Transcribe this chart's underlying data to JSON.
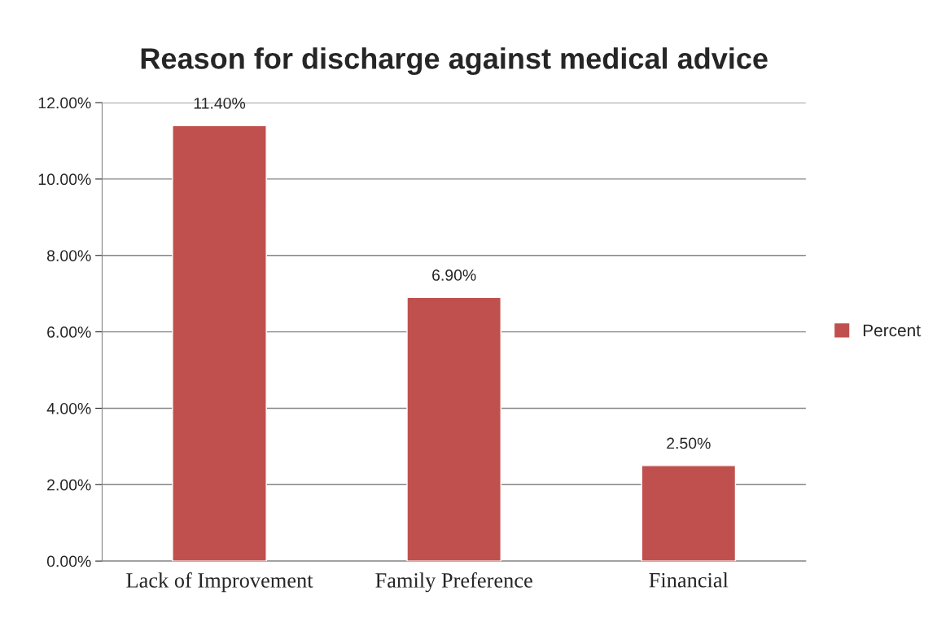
{
  "chart_data": {
    "type": "bar",
    "title": "Reason for discharge against medical advice",
    "categories": [
      "Lack of Improvement",
      "Family Preference",
      "Financial"
    ],
    "series": [
      {
        "name": "Percent",
        "color": "#c0504d",
        "values": [
          11.4,
          6.9,
          2.5
        ],
        "value_labels": [
          "11.40%",
          "6.90%",
          "2.50%"
        ]
      }
    ],
    "ylim": [
      0,
      12
    ],
    "yticks": [
      {
        "value": 0,
        "label": "0.00%"
      },
      {
        "value": 2,
        "label": "2.00%"
      },
      {
        "value": 4,
        "label": "4.00%"
      },
      {
        "value": 6,
        "label": "6.00%"
      },
      {
        "value": 8,
        "label": "8.00%"
      },
      {
        "value": 10,
        "label": "10.00%"
      },
      {
        "value": 12,
        "label": "12.00%"
      }
    ],
    "grid": "y",
    "legend": "right"
  }
}
